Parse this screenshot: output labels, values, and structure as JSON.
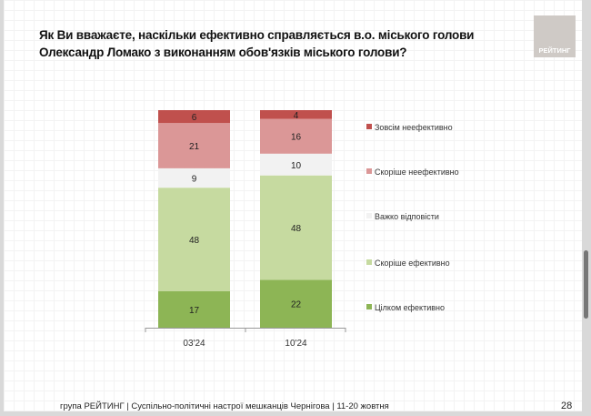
{
  "header": {
    "title": "Як Ви вважаєте, наскільки ефективно справляється в.о. міського голови Олександр Ломако з виконанням обов'язків міського голови?",
    "logo_text": "РЕЙТИНГ"
  },
  "footer": {
    "text": "група РЕЙТИНГ  | Суспільно-політичні настрої мешканців Чернігова | 11-20 жовтня",
    "page": "28"
  },
  "chart_data": {
    "type": "bar",
    "stacked": true,
    "title": "Як Ви вважаєте, наскільки ефективно справляється в.о. міського голови Олександр Ломако з виконанням обов'язків міського голови?",
    "categories": [
      "03'24",
      "10'24"
    ],
    "series": [
      {
        "name": "Цілком ефективно",
        "values": [
          17,
          22
        ],
        "color": "#8db555"
      },
      {
        "name": "Скоріше ефективно",
        "values": [
          48,
          48
        ],
        "color": "#c6daa0"
      },
      {
        "name": "Важко відповісти",
        "values": [
          9,
          10
        ],
        "color": "#f2f2f2"
      },
      {
        "name": "Скоріше неефективно",
        "values": [
          21,
          16
        ],
        "color": "#db9797"
      },
      {
        "name": "Зовсім неефективно",
        "values": [
          6,
          4
        ],
        "color": "#c0504d"
      }
    ],
    "legend_position": "right",
    "grid": false
  }
}
